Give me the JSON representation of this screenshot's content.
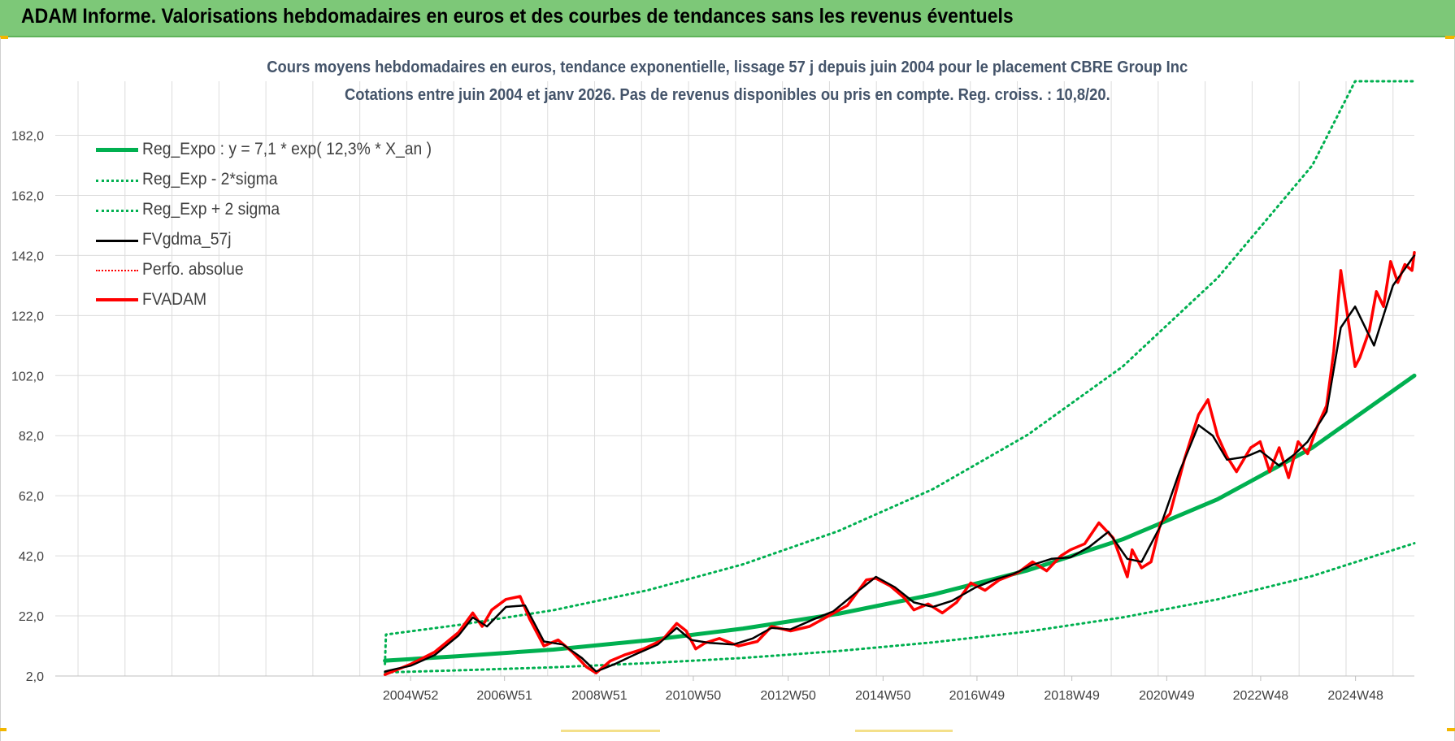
{
  "header": {
    "title": "ADAM Informe. Valorisations hebdomadaires en euros et des courbes de tendances sans les revenus éventuels",
    "bg_color": "#7dc878"
  },
  "chart_data": {
    "type": "line",
    "title": "Cours moyens hebdomadaires en euros, tendance exponentielle, lissage 57 j depuis juin 2004 pour le placement CBRE Group Inc",
    "subtitle": "Cotations entre juin 2004 et janv 2026.  Pas de revenus disponibles ou pris en compte. Reg. croiss. : 10,8/20.",
    "xlabel": "",
    "ylabel": "",
    "ylim": [
      2,
      200
    ],
    "yticks": [
      "2,0",
      "22,0",
      "42,0",
      "62,0",
      "82,0",
      "102,0",
      "122,0",
      "142,0",
      "162,0",
      "182,0"
    ],
    "xlim": [
      1997.5,
      2026.15
    ],
    "xticks": [
      {
        "label": "2004W52",
        "x": 2004.99
      },
      {
        "label": "2006W51",
        "x": 2006.97
      },
      {
        "label": "2008W51",
        "x": 2008.97
      },
      {
        "label": "2010W50",
        "x": 2010.95
      },
      {
        "label": "2012W50",
        "x": 2012.95
      },
      {
        "label": "2014W50",
        "x": 2014.95
      },
      {
        "label": "2016W49",
        "x": 2016.93
      },
      {
        "label": "2018W49",
        "x": 2018.93
      },
      {
        "label": "2020W49",
        "x": 2020.93
      },
      {
        "label": "2022W48",
        "x": 2022.91
      },
      {
        "label": "2024W48",
        "x": 2024.91
      }
    ],
    "grid": true,
    "legend_position": "top-left",
    "series": [
      {
        "name": "Reg_Expo : y = 7,1 * exp( 12,3% *  X_an )",
        "color": "#00b050",
        "style": "solid-thick",
        "x": [
          2004.45,
          2006.0,
          2008.0,
          2010.0,
          2012.0,
          2014.0,
          2016.0,
          2018.0,
          2020.0,
          2022.0,
          2024.0,
          2026.15
        ],
        "y": [
          7.1,
          8.6,
          10.8,
          13.9,
          17.8,
          22.7,
          29.1,
          37.2,
          47.5,
          60.8,
          78.0,
          102.0
        ]
      },
      {
        "name": "Reg_Exp - 2*sigma",
        "color": "#00b050",
        "style": "dotted",
        "x": [
          2004.45,
          2006.0,
          2008.0,
          2010.0,
          2012.0,
          2014.0,
          2016.0,
          2018.0,
          2020.0,
          2022.0,
          2024.0,
          2026.15
        ],
        "y": [
          3.2,
          3.9,
          4.9,
          6.3,
          8.0,
          10.3,
          13.2,
          16.8,
          21.5,
          27.5,
          35.3,
          46.2
        ]
      },
      {
        "name": "Reg_Exp + 2 sigma",
        "color": "#00b050",
        "style": "dotted",
        "x": [
          2004.45,
          2004.47,
          2006.0,
          2008.0,
          2010.0,
          2012.0,
          2014.0,
          2016.0,
          2018.0,
          2020.0,
          2022.0,
          2024.0,
          2024.9,
          2026.15
        ],
        "y": [
          6.0,
          15.8,
          19.0,
          23.9,
          30.6,
          39.2,
          50.2,
          64.2,
          82.3,
          105.0,
          134.5,
          172.0,
          200.0,
          200.0
        ]
      },
      {
        "name": "FVgdma_57j",
        "color": "#000000",
        "style": "solid",
        "x": [
          2004.45,
          2005.0,
          2005.5,
          2006.0,
          2006.3,
          2006.6,
          2007.0,
          2007.4,
          2007.8,
          2008.2,
          2008.6,
          2008.9,
          2009.3,
          2009.7,
          2010.2,
          2010.6,
          2010.9,
          2011.3,
          2011.8,
          2012.2,
          2012.6,
          2013.0,
          2013.5,
          2013.9,
          2014.4,
          2014.8,
          2015.2,
          2015.6,
          2016.0,
          2016.4,
          2016.9,
          2017.3,
          2017.7,
          2018.1,
          2018.5,
          2018.9,
          2019.3,
          2019.7,
          2020.1,
          2020.4,
          2020.8,
          2021.2,
          2021.6,
          2021.9,
          2022.2,
          2022.6,
          2022.9,
          2023.3,
          2023.6,
          2023.9,
          2024.3,
          2024.6,
          2024.9,
          2025.3,
          2025.7,
          2026.15
        ],
        "y": [
          3.5,
          5.5,
          9.0,
          15.5,
          21.5,
          18.5,
          25.0,
          25.5,
          13.5,
          12.5,
          8.0,
          3.5,
          6.0,
          9.0,
          12.5,
          18.0,
          14.0,
          13.0,
          12.5,
          14.5,
          18.0,
          17.5,
          21.0,
          23.5,
          30.0,
          35.0,
          31.5,
          26.5,
          25.0,
          27.0,
          31.5,
          34.0,
          36.0,
          39.0,
          41.0,
          41.5,
          45.0,
          50.0,
          41.0,
          40.0,
          52.0,
          70.0,
          85.5,
          82.0,
          74.0,
          75.0,
          77.0,
          72.0,
          75.5,
          80.0,
          90.0,
          118.0,
          125.0,
          112.0,
          132.0,
          142.0
        ]
      },
      {
        "name": "Perfo. absolue",
        "color": "#ff0000",
        "style": "dotted",
        "x": [
          2004.45,
          2005.0,
          2005.5,
          2006.0,
          2006.3,
          2006.5,
          2006.7,
          2007.0,
          2007.3,
          2007.5,
          2007.8,
          2008.1,
          2008.4,
          2008.7,
          2008.9,
          2009.2,
          2009.5,
          2009.9,
          2010.3,
          2010.6,
          2010.8,
          2011.0,
          2011.2,
          2011.5,
          2011.9,
          2012.3,
          2012.6,
          2013.0,
          2013.4,
          2013.8,
          2014.2,
          2014.6,
          2014.8,
          2015.1,
          2015.4,
          2015.6,
          2015.9,
          2016.2,
          2016.5,
          2016.8,
          2017.1,
          2017.4,
          2017.8,
          2018.1,
          2018.4,
          2018.7,
          2018.9,
          2019.2,
          2019.5,
          2019.8,
          2020.1,
          2020.2,
          2020.4,
          2020.6,
          2020.8,
          2021.0,
          2021.3,
          2021.6,
          2021.8,
          2022.0,
          2022.2,
          2022.4,
          2022.7,
          2022.9,
          2023.1,
          2023.3,
          2023.5,
          2023.7,
          2023.9,
          2024.1,
          2024.3,
          2024.45,
          2024.6,
          2024.75,
          2024.9,
          2025.0,
          2025.2,
          2025.35,
          2025.5,
          2025.65,
          2025.8,
          2025.95,
          2026.1,
          2026.15
        ],
        "y": [
          2.5,
          6.0,
          10.0,
          16.5,
          23.0,
          18.5,
          24.0,
          27.5,
          28.5,
          21.0,
          12.0,
          14.0,
          10.0,
          5.0,
          3.0,
          7.0,
          9.0,
          11.0,
          14.0,
          19.5,
          17.0,
          11.0,
          13.0,
          14.5,
          12.0,
          13.5,
          18.5,
          17.0,
          18.5,
          22.0,
          25.5,
          34.0,
          34.5,
          32.0,
          28.0,
          24.0,
          26.0,
          23.0,
          26.5,
          33.0,
          30.5,
          34.0,
          36.5,
          40.0,
          37.0,
          42.0,
          44.0,
          46.0,
          53.0,
          48.0,
          35.0,
          44.0,
          38.0,
          40.0,
          53.0,
          56.0,
          74.0,
          89.0,
          94.0,
          82.0,
          75.0,
          70.0,
          78.0,
          80.0,
          70.0,
          78.0,
          68.0,
          80.0,
          76.0,
          85.0,
          92.0,
          110.0,
          137.0,
          121.0,
          105.0,
          108.0,
          117.0,
          130.0,
          125.0,
          140.0,
          133.0,
          139.0,
          137.0,
          143.0
        ]
      },
      {
        "name": "FVADAM",
        "color": "#ff0000",
        "style": "solid-thick",
        "x": [
          2004.45,
          2005.0,
          2005.5,
          2006.0,
          2006.3,
          2006.5,
          2006.7,
          2007.0,
          2007.3,
          2007.5,
          2007.8,
          2008.1,
          2008.4,
          2008.7,
          2008.9,
          2009.2,
          2009.5,
          2009.9,
          2010.3,
          2010.6,
          2010.8,
          2011.0,
          2011.2,
          2011.5,
          2011.9,
          2012.3,
          2012.6,
          2013.0,
          2013.4,
          2013.8,
          2014.2,
          2014.6,
          2014.8,
          2015.1,
          2015.4,
          2015.6,
          2015.9,
          2016.2,
          2016.5,
          2016.8,
          2017.1,
          2017.4,
          2017.8,
          2018.1,
          2018.4,
          2018.7,
          2018.9,
          2019.2,
          2019.5,
          2019.8,
          2020.1,
          2020.2,
          2020.4,
          2020.6,
          2020.8,
          2021.0,
          2021.3,
          2021.6,
          2021.8,
          2022.0,
          2022.2,
          2022.4,
          2022.7,
          2022.9,
          2023.1,
          2023.3,
          2023.5,
          2023.7,
          2023.9,
          2024.1,
          2024.3,
          2024.45,
          2024.6,
          2024.75,
          2024.9,
          2025.0,
          2025.2,
          2025.35,
          2025.5,
          2025.65,
          2025.8,
          2025.95,
          2026.1,
          2026.15
        ],
        "y": [
          2.5,
          6.0,
          10.0,
          16.5,
          23.0,
          18.5,
          24.0,
          27.5,
          28.5,
          21.0,
          12.0,
          14.0,
          10.0,
          5.0,
          3.0,
          7.0,
          9.0,
          11.0,
          14.0,
          19.5,
          17.0,
          11.0,
          13.0,
          14.5,
          12.0,
          13.5,
          18.5,
          17.0,
          18.5,
          22.0,
          25.5,
          34.0,
          34.5,
          32.0,
          28.0,
          24.0,
          26.0,
          23.0,
          26.5,
          33.0,
          30.5,
          34.0,
          36.5,
          40.0,
          37.0,
          42.0,
          44.0,
          46.0,
          53.0,
          48.0,
          35.0,
          44.0,
          38.0,
          40.0,
          53.0,
          56.0,
          74.0,
          89.0,
          94.0,
          82.0,
          75.0,
          70.0,
          78.0,
          80.0,
          70.0,
          78.0,
          68.0,
          80.0,
          76.0,
          85.0,
          92.0,
          110.0,
          137.0,
          121.0,
          105.0,
          108.0,
          117.0,
          130.0,
          125.0,
          140.0,
          133.0,
          139.0,
          137.0,
          143.0
        ]
      }
    ]
  }
}
